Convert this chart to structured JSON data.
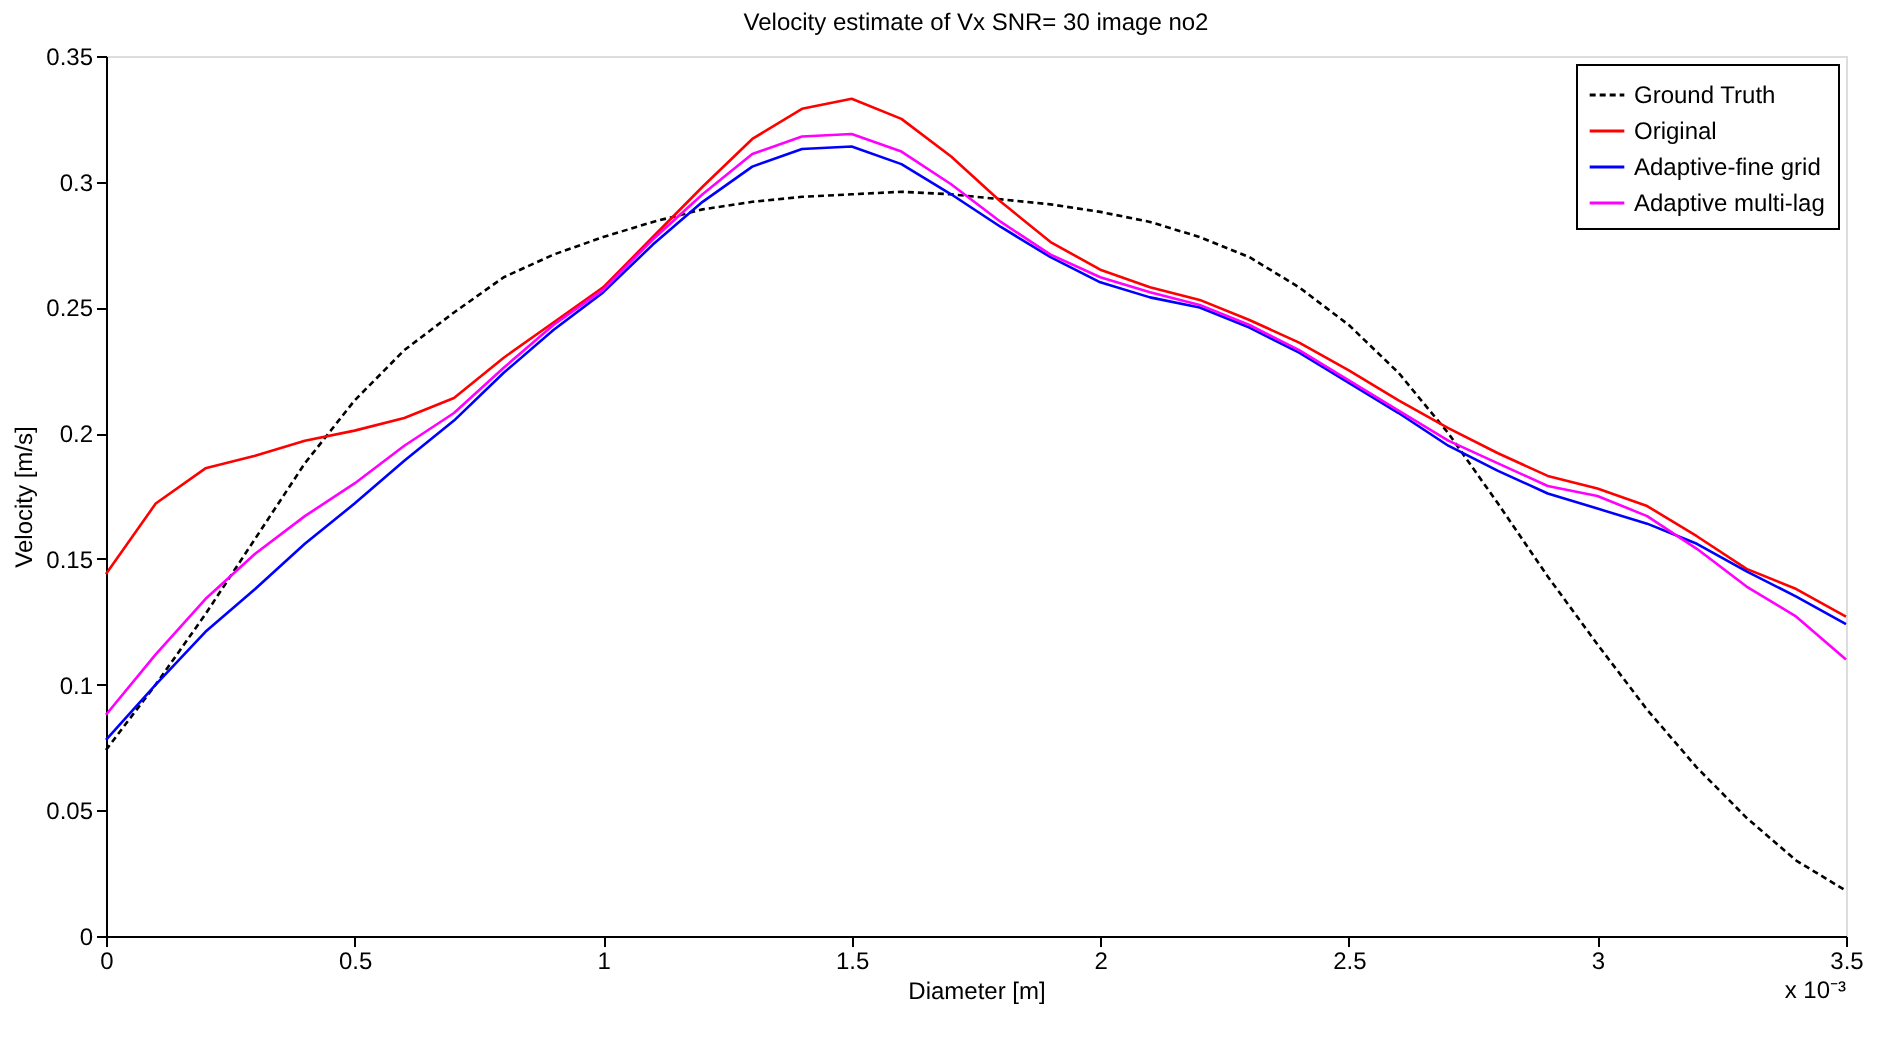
{
  "chart_data": {
    "type": "line",
    "title": "Velocity estimate of Vx SNR= 30 image no2",
    "xlabel": "Diameter [m]",
    "ylabel": "Velocity [m/s]",
    "x": [
      0,
      0.1,
      0.2,
      0.3,
      0.4,
      0.5,
      0.6,
      0.7,
      0.8,
      0.9,
      1.0,
      1.1,
      1.2,
      1.3,
      1.4,
      1.5,
      1.6,
      1.7,
      1.8,
      1.9,
      2.0,
      2.1,
      2.2,
      2.3,
      2.4,
      2.5,
      2.6,
      2.7,
      2.8,
      2.9,
      3.0,
      3.1,
      3.2,
      3.3,
      3.4,
      3.5
    ],
    "series": [
      {
        "name": "Ground Truth",
        "color": "#000000",
        "line_style": "dashed",
        "values": [
          0.074,
          0.1,
          0.128,
          0.158,
          0.188,
          0.213,
          0.233,
          0.248,
          0.262,
          0.271,
          0.278,
          0.284,
          0.289,
          0.292,
          0.294,
          0.295,
          0.296,
          0.295,
          0.293,
          0.291,
          0.288,
          0.284,
          0.278,
          0.27,
          0.258,
          0.243,
          0.224,
          0.2,
          0.172,
          0.143,
          0.116,
          0.09,
          0.067,
          0.047,
          0.03,
          0.018
        ]
      },
      {
        "name": "Original",
        "color": "#ff0000",
        "line_style": "solid",
        "values": [
          0.144,
          0.172,
          0.186,
          0.191,
          0.197,
          0.201,
          0.206,
          0.214,
          0.23,
          0.244,
          0.258,
          0.278,
          0.298,
          0.317,
          0.329,
          0.333,
          0.325,
          0.31,
          0.292,
          0.276,
          0.265,
          0.258,
          0.253,
          0.245,
          0.236,
          0.225,
          0.213,
          0.202,
          0.192,
          0.183,
          0.178,
          0.171,
          0.159,
          0.146,
          0.138,
          0.127
        ]
      },
      {
        "name": "Adaptive-fine grid",
        "color": "#0000ff",
        "line_style": "solid",
        "values": [
          0.078,
          0.1,
          0.121,
          0.138,
          0.156,
          0.172,
          0.189,
          0.205,
          0.224,
          0.241,
          0.256,
          0.275,
          0.292,
          0.306,
          0.313,
          0.314,
          0.307,
          0.295,
          0.282,
          0.27,
          0.26,
          0.254,
          0.25,
          0.242,
          0.232,
          0.22,
          0.208,
          0.195,
          0.185,
          0.176,
          0.17,
          0.164,
          0.156,
          0.145,
          0.135,
          0.124
        ]
      },
      {
        "name": "Adaptive multi-lag",
        "color": "#ff00ff",
        "line_style": "solid",
        "values": [
          0.088,
          0.112,
          0.134,
          0.152,
          0.167,
          0.18,
          0.195,
          0.208,
          0.226,
          0.243,
          0.257,
          0.277,
          0.295,
          0.311,
          0.318,
          0.319,
          0.312,
          0.299,
          0.284,
          0.271,
          0.262,
          0.256,
          0.251,
          0.243,
          0.233,
          0.221,
          0.209,
          0.197,
          0.188,
          0.179,
          0.175,
          0.167,
          0.154,
          0.139,
          0.127,
          0.11
        ]
      }
    ],
    "xlim": [
      0,
      3.5
    ],
    "xticks": [
      0,
      0.5,
      1,
      1.5,
      2,
      2.5,
      3,
      3.5
    ],
    "ylim": [
      0,
      0.35
    ],
    "yticks": [
      0,
      0.05,
      0.1,
      0.15,
      0.2,
      0.25,
      0.3,
      0.35
    ],
    "annotations": [
      "x 10⁻³"
    ],
    "legend": "top right",
    "grid": false
  }
}
